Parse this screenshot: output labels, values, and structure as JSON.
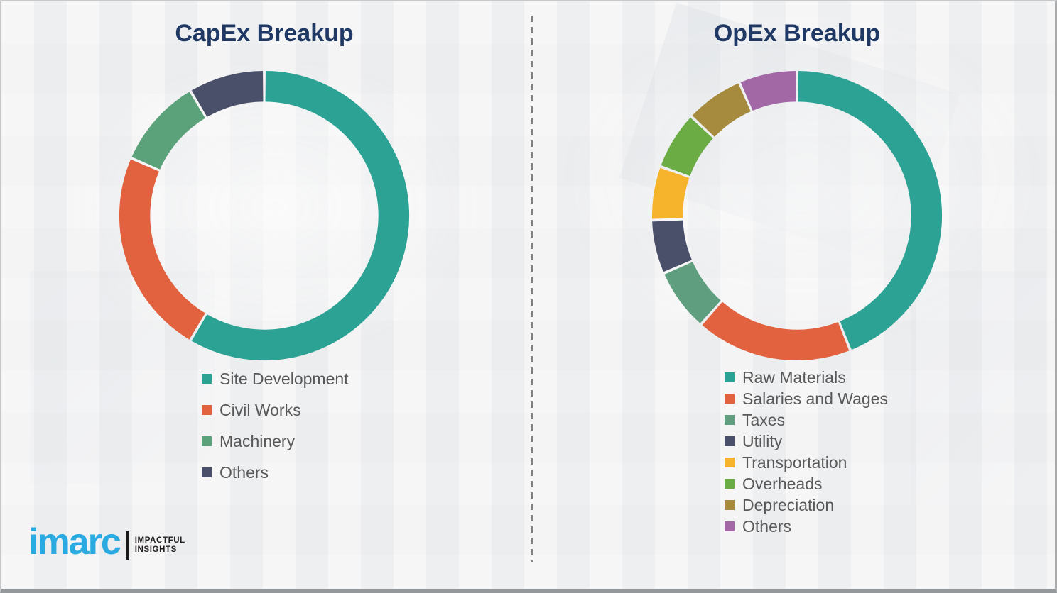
{
  "page": {
    "background_color": "#f1f1f2",
    "divider_color": "#7f7f7f",
    "title_color": "#1f3864",
    "legend_text_color": "#595959"
  },
  "logo": {
    "brand": "imarc",
    "tagline_line1": "IMPACTFUL",
    "tagline_line2": "INSIGHTS",
    "brand_color": "#29abe2"
  },
  "chart_data": [
    {
      "type": "pie",
      "subtype": "donut",
      "title": "CapEx Breakup",
      "units": "percent_estimated_from_arc_angles",
      "legend_position": "below",
      "segments": [
        {
          "label": "Site Development",
          "value": 58.5,
          "color": "#2ba294"
        },
        {
          "label": "Civil Works",
          "value": 23.0,
          "color": "#e2613e"
        },
        {
          "label": "Machinery",
          "value": 10.0,
          "color": "#5ba27b"
        },
        {
          "label": "Others",
          "value": 8.5,
          "color": "#4a506a"
        }
      ]
    },
    {
      "type": "pie",
      "subtype": "donut",
      "title": "OpEx Breakup",
      "units": "percent_estimated_from_arc_angles",
      "legend_position": "below",
      "segments": [
        {
          "label": "Raw Materials",
          "value": 44.0,
          "color": "#2ba294"
        },
        {
          "label": "Salaries and Wages",
          "value": 17.5,
          "color": "#e2613e"
        },
        {
          "label": "Taxes",
          "value": 7.0,
          "color": "#5f9f80"
        },
        {
          "label": "Utility",
          "value": 6.0,
          "color": "#4a506a"
        },
        {
          "label": "Transportation",
          "value": 6.0,
          "color": "#f6b42c"
        },
        {
          "label": "Overheads",
          "value": 6.5,
          "color": "#6cac44"
        },
        {
          "label": "Depreciation",
          "value": 6.5,
          "color": "#a68b3e"
        },
        {
          "label": "Others",
          "value": 6.5,
          "color": "#a268a6"
        }
      ]
    }
  ]
}
